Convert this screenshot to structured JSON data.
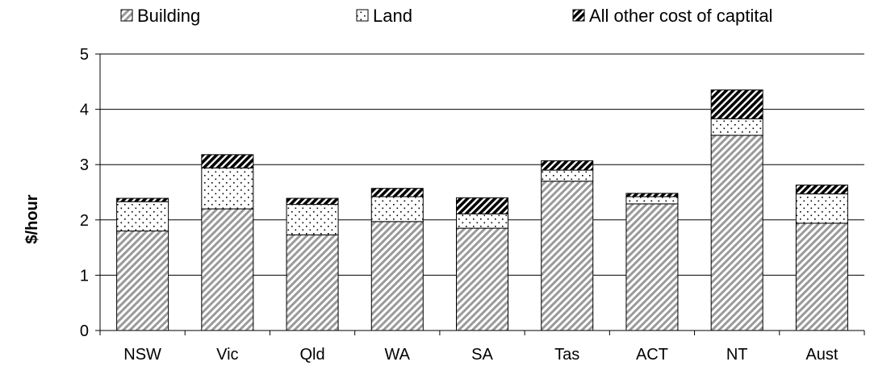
{
  "chart_data": {
    "type": "bar",
    "stacked": true,
    "categories": [
      "NSW",
      "Vic",
      "Qld",
      "WA",
      "SA",
      "Tas",
      "ACT",
      "NT",
      "Aust"
    ],
    "series": [
      {
        "name": "Building",
        "pattern": "diagonal",
        "values": [
          1.8,
          2.2,
          1.73,
          1.97,
          1.85,
          2.7,
          2.29,
          3.53,
          1.94
        ]
      },
      {
        "name": "Land",
        "pattern": "dots",
        "values": [
          0.53,
          0.74,
          0.55,
          0.45,
          0.26,
          0.2,
          0.13,
          0.3,
          0.53
        ]
      },
      {
        "name": "All other cost of captital",
        "pattern": "dense-diagonal",
        "values": [
          0.06,
          0.24,
          0.11,
          0.15,
          0.29,
          0.17,
          0.06,
          0.52,
          0.16
        ]
      }
    ],
    "ylabel": "$/hour",
    "ylim": [
      0,
      5
    ],
    "yticks": [
      0,
      1,
      2,
      3,
      4,
      5
    ],
    "grid": true,
    "legend_position": "top"
  }
}
